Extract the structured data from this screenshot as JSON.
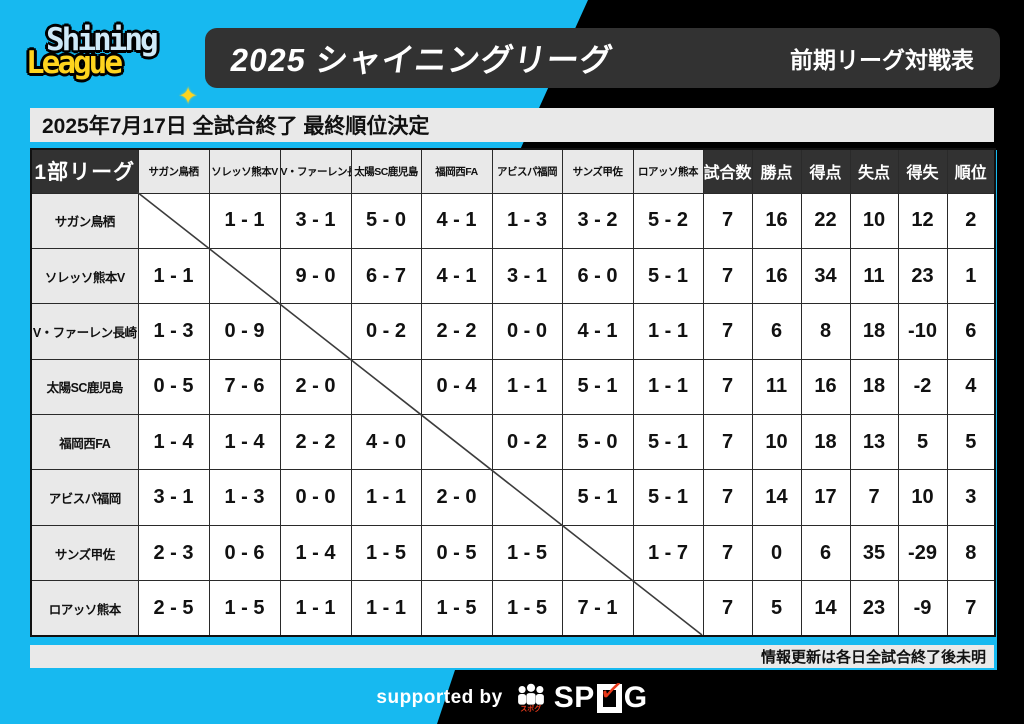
{
  "logo": {
    "line1": "Shining",
    "line2": "League",
    "sparkle": "✦"
  },
  "header": {
    "title": "2025 シャイニングリーグ",
    "right_label": "前期リーグ対戦表"
  },
  "status_bar": {
    "text": "2025年7月17日 全試合終了 最終順位決定"
  },
  "table": {
    "corner_label": "1部リーグ",
    "teams": [
      "サガン鳥栖",
      "ソレッソ熊本V",
      "V・ファーレン長崎",
      "太陽SC鹿児島",
      "福岡西FA",
      "アビスパ福岡",
      "サンズ甲佐",
      "ロアッソ熊本"
    ],
    "stat_headers": [
      "試合数",
      "勝点",
      "得点",
      "失点",
      "得失",
      "順位"
    ],
    "rows": [
      {
        "team": "サガン鳥栖",
        "results": [
          "",
          "1 - 1",
          "3 - 1",
          "5 - 0",
          "4 - 1",
          "1 - 3",
          "3 - 2",
          "5 - 2"
        ],
        "stats": [
          7,
          16,
          22,
          10,
          12,
          2
        ]
      },
      {
        "team": "ソレッソ熊本V",
        "results": [
          "1 - 1",
          "",
          "9 - 0",
          "6 - 7",
          "4 - 1",
          "3 - 1",
          "6 - 0",
          "5 - 1"
        ],
        "stats": [
          7,
          16,
          34,
          11,
          23,
          1
        ]
      },
      {
        "team": "V・ファーレン長崎",
        "results": [
          "1 - 3",
          "0 - 9",
          "",
          "0 - 2",
          "2 - 2",
          "0 - 0",
          "4 - 1",
          "1 - 1"
        ],
        "stats": [
          7,
          6,
          8,
          18,
          -10,
          6
        ]
      },
      {
        "team": "太陽SC鹿児島",
        "results": [
          "0 - 5",
          "7 - 6",
          "2 - 0",
          "",
          "0 - 4",
          "1 - 1",
          "5 - 1",
          "1 - 1"
        ],
        "stats": [
          7,
          11,
          16,
          18,
          -2,
          4
        ]
      },
      {
        "team": "福岡西FA",
        "results": [
          "1 - 4",
          "1 - 4",
          "2 - 2",
          "4 - 0",
          "",
          "0 - 2",
          "5 - 0",
          "5 - 1"
        ],
        "stats": [
          7,
          10,
          18,
          13,
          5,
          5
        ]
      },
      {
        "team": "アビスパ福岡",
        "results": [
          "3 - 1",
          "1 - 3",
          "0 - 0",
          "1 - 1",
          "2 - 0",
          "",
          "5 - 1",
          "5 - 1"
        ],
        "stats": [
          7,
          14,
          17,
          7,
          10,
          3
        ]
      },
      {
        "team": "サンズ甲佐",
        "results": [
          "2 - 3",
          "0 - 6",
          "1 - 4",
          "1 - 5",
          "0 - 5",
          "1 - 5",
          "",
          "1 - 7"
        ],
        "stats": [
          7,
          0,
          6,
          35,
          -29,
          8
        ]
      },
      {
        "team": "ロアッソ熊本",
        "results": [
          "2 - 5",
          "1 - 5",
          "1 - 1",
          "1 - 1",
          "1 - 5",
          "1 - 5",
          "7 - 1",
          ""
        ],
        "stats": [
          7,
          5,
          14,
          23,
          -9,
          7
        ]
      }
    ]
  },
  "footer": {
    "note": "情報更新は各日全試合終了後未明",
    "supported_by": "supported by",
    "sponsor_prefix": "SP",
    "sponsor_suffix": "G",
    "sponsor_full": "SPOG",
    "sponsor_kana": "スポグ"
  },
  "colors": {
    "background_cyan": "#17b9f0",
    "panel_dark": "#323232",
    "light_gray": "#e9e9e9",
    "logo_yellow": "#ffd41e",
    "logo_blue": "#cfe9f7",
    "check_red": "#e8391a"
  },
  "chart_data": {
    "type": "table",
    "title": "2025 シャイニングリーグ 前期リーグ対戦表",
    "subtitle": "2025年7月17日 全試合終了 最終順位決定",
    "columns": [
      "1部リーグ",
      "サガン鳥栖",
      "ソレッソ熊本V",
      "V・ファーレン長崎",
      "太陽SC鹿児島",
      "福岡西FA",
      "アビスパ福岡",
      "サンズ甲佐",
      "ロアッソ熊本",
      "試合数",
      "勝点",
      "得点",
      "失点",
      "得失",
      "順位"
    ],
    "rows": [
      [
        "サガン鳥栖",
        null,
        "1 - 1",
        "3 - 1",
        "5 - 0",
        "4 - 1",
        "1 - 3",
        "3 - 2",
        "5 - 2",
        7,
        16,
        22,
        10,
        12,
        2
      ],
      [
        "ソレッソ熊本V",
        "1 - 1",
        null,
        "9 - 0",
        "6 - 7",
        "4 - 1",
        "3 - 1",
        "6 - 0",
        "5 - 1",
        7,
        16,
        34,
        11,
        23,
        1
      ],
      [
        "V・ファーレン長崎",
        "1 - 3",
        "0 - 9",
        null,
        "0 - 2",
        "2 - 2",
        "0 - 0",
        "4 - 1",
        "1 - 1",
        7,
        6,
        8,
        18,
        -10,
        6
      ],
      [
        "太陽SC鹿児島",
        "0 - 5",
        "7 - 6",
        "2 - 0",
        null,
        "0 - 4",
        "1 - 1",
        "5 - 1",
        "1 - 1",
        7,
        11,
        16,
        18,
        -2,
        4
      ],
      [
        "福岡西FA",
        "1 - 4",
        "1 - 4",
        "2 - 2",
        "4 - 0",
        null,
        "0 - 2",
        "5 - 0",
        "5 - 1",
        7,
        10,
        18,
        13,
        5,
        5
      ],
      [
        "アビスパ福岡",
        "3 - 1",
        "1 - 3",
        "0 - 0",
        "1 - 1",
        "2 - 0",
        null,
        "5 - 1",
        "5 - 1",
        7,
        14,
        17,
        7,
        10,
        3
      ],
      [
        "サンズ甲佐",
        "2 - 3",
        "0 - 6",
        "1 - 4",
        "1 - 5",
        "0 - 5",
        "1 - 5",
        null,
        "1 - 7",
        7,
        0,
        6,
        35,
        -29,
        8
      ],
      [
        "ロアッソ熊本",
        "2 - 5",
        "1 - 5",
        "1 - 1",
        "1 - 1",
        "1 - 5",
        "1 - 5",
        "7 - 1",
        null,
        7,
        5,
        14,
        23,
        -9,
        7
      ]
    ]
  }
}
